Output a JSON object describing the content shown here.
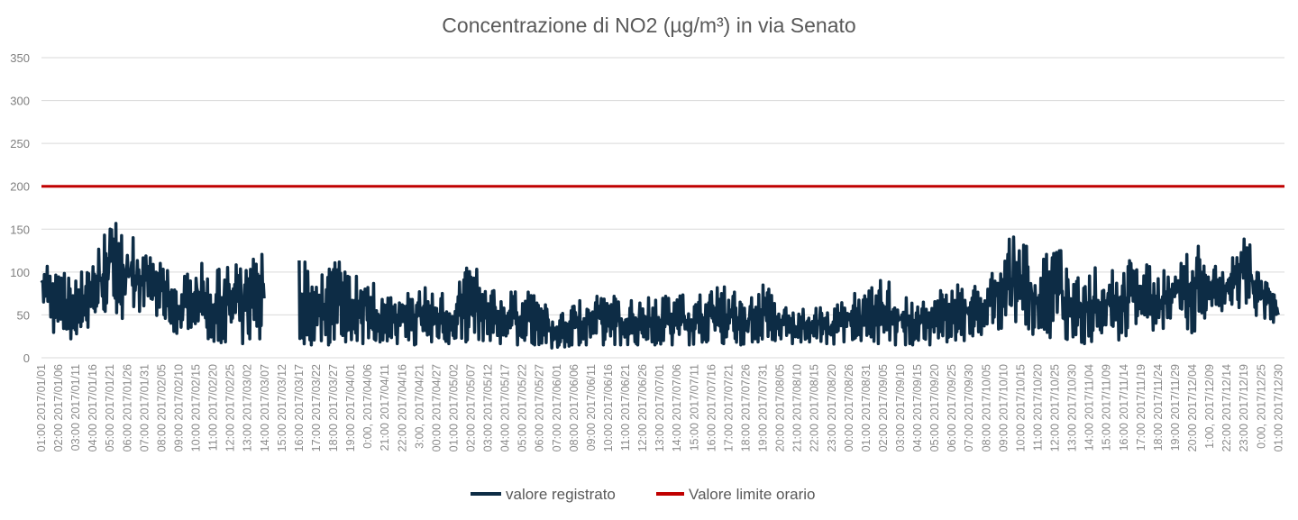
{
  "chart_data": {
    "type": "line",
    "title": "Concentrazione di NO2 (µg/m³) in via Senato",
    "xlabel": "",
    "ylabel": "",
    "ylim": [
      0,
      350
    ],
    "yticks": [
      0,
      50,
      100,
      150,
      200,
      250,
      300,
      350
    ],
    "grid": true,
    "legend_position": "bottom",
    "x_tick_labels": [
      "01:00 2017/01/01",
      "02:00 2017/01/06",
      "03:00 2017/01/11",
      "04:00 2017/01/16",
      "05:00 2017/01/21",
      "06:00 2017/01/26",
      "07:00 2017/01/31",
      "08:00 2017/02/05",
      "09:00 2017/02/10",
      "10:00 2017/02/15",
      "11:00 2017/02/20",
      "12:00 2017/02/25",
      "13:00 2017/03/02",
      "14:00 2017/03/07",
      "15:00 2017/03/12",
      "16:00 2017/03/17",
      "17:00 2017/03/22",
      "18:00 2017/03/27",
      "19:00 2017/04/01",
      "0:00, 2017/04/06",
      "21:00 2017/04/11",
      "22:00 2017/04/16",
      "3:00, 2017/04/21",
      "00:00 2017/04/27",
      "01:00 2017/05/02",
      "02:00 2017/05/07",
      "03:00 2017/05/12",
      "04:00 2017/05/17",
      "05:00 2017/05/22",
      "06:00 2017/05/27",
      "07:00 2017/06/01",
      "08:00 2017/06/06",
      "09:00 2017/06/11",
      "10:00 2017/06/16",
      "11:00 2017/06/21",
      "12:00 2017/06/26",
      "13:00 2017/07/01",
      "14:00 2017/07/06",
      "15:00 2017/07/11",
      "16:00 2017/07/16",
      "17:00 2017/07/21",
      "18:00 2017/07/26",
      "19:00 2017/07/31",
      "20:00 2017/08/05",
      "21:00 2017/08/10",
      "22:00 2017/08/15",
      "23:00 2017/08/20",
      "00:00 2017/08/26",
      "01:00 2017/08/31",
      "02:00 2017/09/05",
      "03:00 2017/09/10",
      "04:00 2017/09/15",
      "05:00 2017/09/20",
      "06:00 2017/09/25",
      "07:00 2017/09/30",
      "08:00 2017/10/05",
      "09:00 2017/10/10",
      "10:00 2017/10/15",
      "11:00 2017/10/20",
      "12:00 2017/10/25",
      "13:00 2017/10/30",
      "14:00 2017/11/04",
      "15:00 2017/11/09",
      "16:00 2017/11/14",
      "17:00 2017/11/19",
      "18:00 2017/11/24",
      "19:00 2017/11/29",
      "20:00 2017/12/04",
      "1:00, 2017/12/09",
      "22:00 2017/12/14",
      "23:00 2017/12/19",
      "0:00, 2017/12/25",
      "01:00 2017/12/30"
    ],
    "series": [
      {
        "name": "valore registrato",
        "color": "#0d2c45",
        "note_sampling": "approx. max/min per 5-day tick interval",
        "max": [
          110,
          100,
          95,
          110,
          160,
          150,
          120,
          110,
          85,
          115,
          100,
          110,
          105,
          135,
          null,
          125,
          85,
          120,
          95,
          95,
          70,
          70,
          85,
          75,
          75,
          115,
          80,
          75,
          80,
          70,
          45,
          65,
          70,
          75,
          65,
          70,
          70,
          75,
          70,
          80,
          85,
          60,
          90,
          60,
          55,
          60,
          55,
          75,
          75,
          95,
          75,
          60,
          75,
          85,
          85,
          80,
          135,
          145,
          100,
          145,
          85,
          110,
          95,
          115,
          110,
          105,
          95,
          140,
          110,
          100,
          150,
          95,
          70
        ],
        "min": [
          65,
          15,
          25,
          40,
          60,
          40,
          60,
          45,
          25,
          40,
          15,
          20,
          15,
          25,
          null,
          15,
          15,
          15,
          20,
          15,
          20,
          15,
          15,
          20,
          15,
          20,
          20,
          15,
          15,
          15,
          10,
          15,
          15,
          15,
          15,
          15,
          15,
          15,
          15,
          20,
          15,
          15,
          20,
          20,
          15,
          20,
          15,
          20,
          20,
          15,
          15,
          15,
          15,
          20,
          20,
          30,
          35,
          45,
          20,
          25,
          20,
          15,
          35,
          15,
          50,
          25,
          55,
          25,
          55,
          55,
          60,
          45,
          40
        ]
      },
      {
        "name": "Valore limite orario",
        "color": "#c00000",
        "value": 200
      }
    ]
  }
}
